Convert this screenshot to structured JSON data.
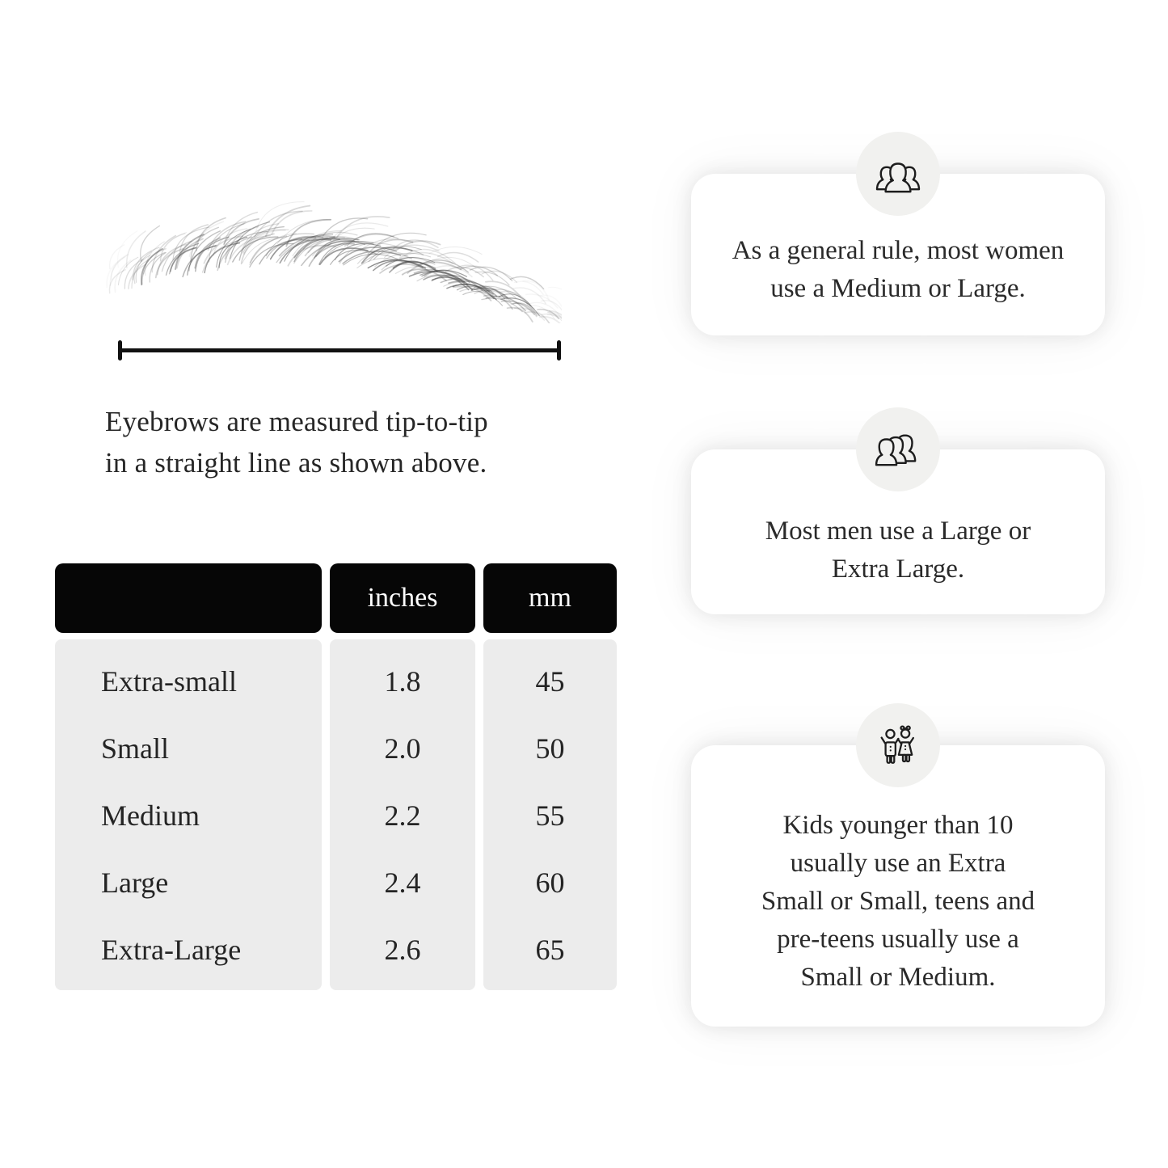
{
  "page": {
    "background": "#ffffff"
  },
  "colors": {
    "table_header_bg": "#060606",
    "table_header_text": "#ffffff",
    "table_body_bg": "#ececec",
    "text": "#242424",
    "card_bg": "#ffffff",
    "icon_circle_bg": "#f1f1ef",
    "line": "#111111"
  },
  "measurement": {
    "illustration": "eyebrow-sketch",
    "caption_lines": [
      "Eyebrows are measured tip-to-tip",
      "in a straight line as shown above."
    ]
  },
  "table": {
    "columns": [
      "",
      "inches",
      "mm"
    ],
    "rows": [
      {
        "size": "Extra-small",
        "inches": "1.8",
        "mm": "45"
      },
      {
        "size": "Small",
        "inches": "2.0",
        "mm": "50"
      },
      {
        "size": "Medium",
        "inches": "2.2",
        "mm": "55"
      },
      {
        "size": "Large",
        "inches": "2.4",
        "mm": "60"
      },
      {
        "size": "Extra-Large",
        "inches": "2.6",
        "mm": "65"
      }
    ]
  },
  "cards": [
    {
      "icon": "women-group-icon",
      "lines": [
        "As a general rule, most women",
        "use a Medium or Large."
      ]
    },
    {
      "icon": "men-group-icon",
      "lines": [
        "Most men use a Large or",
        "Extra Large."
      ]
    },
    {
      "icon": "kids-icon",
      "lines": [
        "Kids younger than 10",
        "usually use an Extra",
        "Small or Small, teens and",
        "pre-teens usually use a",
        "Small or Medium."
      ]
    }
  ]
}
